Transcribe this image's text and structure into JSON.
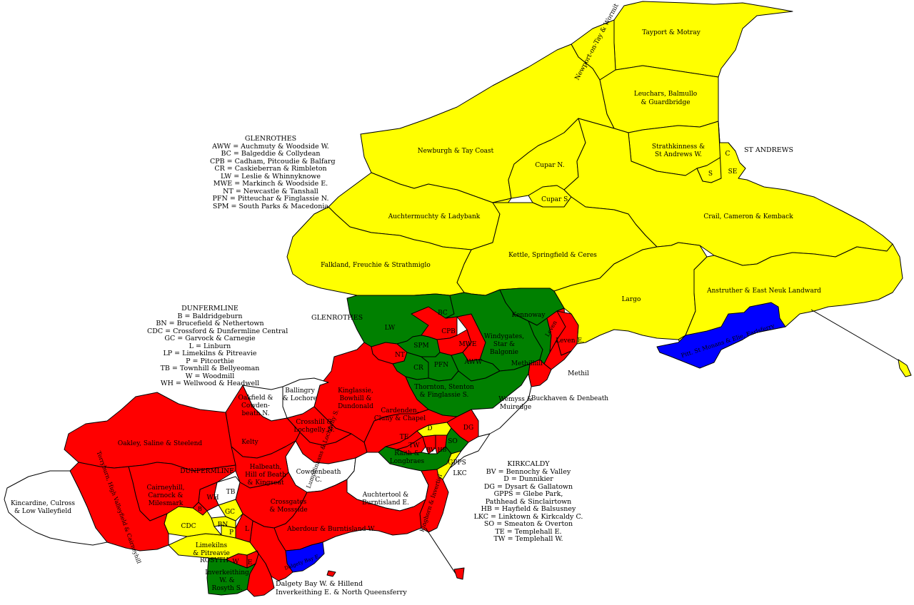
{
  "colors": {
    "yellow": "#ffff00",
    "red": "#ff0000",
    "green": "#008000",
    "blue": "#0000ff",
    "white": "#ffffff"
  },
  "region_labels": {
    "glenrothes": "GLENROTHES",
    "st_andrews": "ST ANDREWS",
    "dunfermline": "DUNFERMLINE",
    "rosyth": "ROSYTH"
  },
  "legend_glenrothes": {
    "title": "GLENROTHES",
    "rows": [
      "AWW = Auchmuty & Woodside W.",
      "BC = Balgeddie & Collydean",
      "CPB = Cadham, Pitcoudie & Balfarg",
      "CR = Caskieberran & Rimbleton",
      "LW = Leslie & Whinnyknowe",
      "MWE = Markinch & Woodside E.",
      "NT = Newcastle & Tanshall",
      "PFN = Pitteuchar & Finglassie N.",
      "SPM = South Parks & Macedonia"
    ]
  },
  "legend_dunfermline": {
    "title": "DUNFERMLINE",
    "rows": [
      "B = Baldridgeburn",
      "BN = Brucefield & Nethertown",
      "CDC = Crossford & Dunfermline Central",
      "GC = Garvock & Carnegie",
      "L = Linburn",
      "LP = Limekilns & Pitreavie",
      "P = Pitcorthie",
      "TB = Townhill & Bellyeoman",
      "W = Woodmill",
      "WH = Wellwood & Headwell"
    ]
  },
  "legend_kirkcaldy": {
    "title": "KIRKCALDY",
    "rows": [
      "BV = Bennochy & Valley",
      "D = Dunnikier",
      "DG = Dysart & Gallatown",
      "GPPS = Glebe Park,",
      "Pathhead & Sinclairtown",
      "HB = Hayfield & Balsusney",
      "LKC = Linktown & Kirkcaldy C.",
      "SO = Smeaton & Overton",
      "TE = Templehall E.",
      "TW = Templehall W."
    ]
  },
  "wards": {
    "tayport": "Tayport & Motray",
    "newport": "Newport-on-Tay & Wormit",
    "leuchars_1": "Leuchars, Balmullo",
    "leuchars_2": "& Guardbridge",
    "strathkinness_1": "Strathkinness &",
    "strathkinness_2": "St Andrews W.",
    "sa_c": "C",
    "sa_s": "S",
    "sa_se": "SE",
    "newburgh": "Newburgh & Tay Coast",
    "cupar_n": "Cupar N.",
    "cupar_s": "Cupar S.",
    "auchtermuchty": "Auchtermuchty & Ladybank",
    "crail": "Crail, Cameron & Kemback",
    "kettle": "Kettle, Springfield & Ceres",
    "falkland": "Falkland, Freuchie & Strathmiglo",
    "largo": "Largo",
    "anstruther": "Anstruther & East Neuk Landward",
    "pittenweem": "Pitt. St Monans & Elie, Earlsferry",
    "lw": "LW",
    "bc": "BC",
    "cpb": "CPB",
    "spm": "SPM",
    "nt": "NT",
    "mwe": "MWE",
    "cr": "CR",
    "pfn": "PFN",
    "aww": "AWW",
    "kennoway": "Kennoway",
    "windygates_1": "Windygates,",
    "windygates_2": "Star &",
    "windygates_3": "Balgonie",
    "methilhill": "Methilhill",
    "leven": "Leven",
    "leven_e": "Leven E.",
    "methil": "Methil",
    "buckhaven": "Buckhaven & Denbeath",
    "thornton_1": "Thornton, Stenton",
    "thornton_2": "& Finglassie S.",
    "wemyss_1": "Wemyss &",
    "wemyss_2": "Muiredge",
    "kinglassie_1": "Kinglassie,",
    "kinglassie_2": "Bowhill &",
    "kinglassie_3": "Dundonald",
    "ballingry_1": "Ballingry",
    "ballingry_2": "& Lochore",
    "oakfield_1": "Oakfield &",
    "oakfield_2": "Cowden-",
    "oakfield_3": "beath N.",
    "cardenden_1": "Cardenden,",
    "cardenden_2": "Cluny & Chapel",
    "crosshill_1": "Crosshill &",
    "crosshill_2": "Lochgelly N.",
    "lumphinnans": "Lumphinnans & Lochgelly S.",
    "kelty": "Kelty",
    "oakley": "Oakley, Saline & Steelend",
    "d": "D",
    "dg": "DG",
    "te": "TE",
    "tw": "TW",
    "bv": "BV",
    "hb": "HB",
    "so": "SO",
    "raith_1": "Raith &",
    "raith_2": "Longbraes",
    "gpps": "GPPS",
    "lkc": "LKC",
    "cowdenbeath_1": "Cowdenbeath",
    "cowdenbeath_2": "C.",
    "halbeath_1": "Halbeath,",
    "halbeath_2": "Hill of Beath",
    "halbeath_3": "& Kingseat",
    "auchtertool_1": "Auchtertool &",
    "auchtertool_2": "Burntisland E.",
    "kinghorn": "Kinghorn & Invertiel",
    "crossgates_1": "Crossgates",
    "crossgates_2": "& Mossside",
    "aberdour": "Aberdour & Burntisland W.",
    "dalgety_e": "Dalgety Bay E.",
    "dalgety_w": "Dalgety Bay W. & Hillend",
    "inverkeithing_e": "Inverkeithing E. & North Queensferry",
    "inverkeithing_w_1": "Inverkeithing",
    "inverkeithing_w_2": "W. &",
    "inverkeithing_w_3": "Rosyth S.",
    "limekilns_1": "Limekilns",
    "limekilns_2": "& Pitreavie",
    "w": "W",
    "e": "E",
    "cdc": "CDC",
    "bn": "BN",
    "p": "P",
    "gc": "GC",
    "tb": "TB",
    "wh": "WH",
    "b": "B",
    "l": "L",
    "cairneyhill_1": "Cairneyhill,",
    "cairneyhill_2": "Carnock &",
    "cairneyhill_3": "Milesmark",
    "torryburn": "Torryburn, High Valleyfield & Cairneyhill",
    "kincardine_1": "Kincardine, Culross",
    "kincardine_2": "& Low Valleyfield"
  }
}
